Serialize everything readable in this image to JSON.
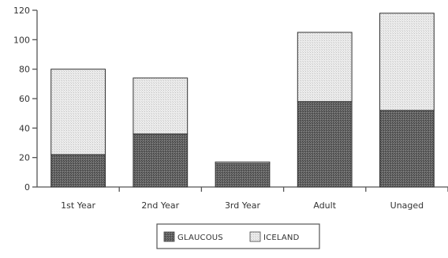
{
  "chart_data": {
    "type": "bar",
    "stacked": true,
    "categories": [
      "1st Year",
      "2nd Year",
      "3rd Year",
      "Adult",
      "Unaged"
    ],
    "series": [
      {
        "name": "GLAUCOUS",
        "values": [
          22,
          36,
          16,
          58,
          52
        ],
        "color": "#5a5a5a"
      },
      {
        "name": "ICELAND",
        "values": [
          58,
          38,
          1,
          47,
          66
        ],
        "color": "#e4e4e4"
      }
    ],
    "ylim": [
      0,
      120
    ],
    "yticks": [
      0,
      20,
      40,
      60,
      80,
      100,
      120
    ],
    "grid": false,
    "legend_position": "bottom-center"
  }
}
